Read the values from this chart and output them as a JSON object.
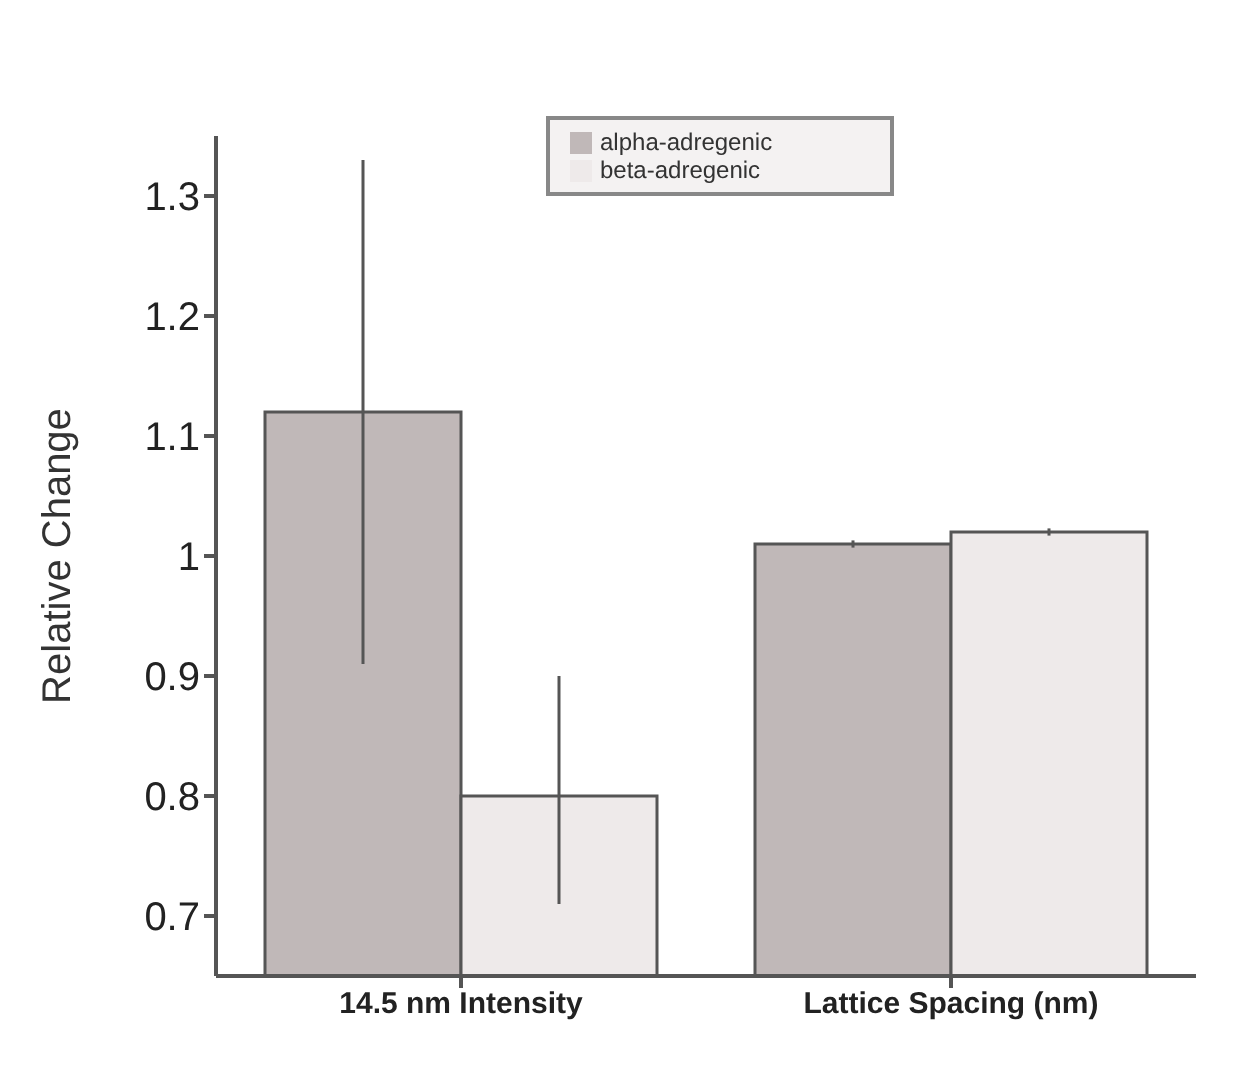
{
  "chart_data": {
    "type": "bar",
    "ylabel": "Relative Change",
    "categories": [
      "14.5 nm Intensity",
      "Lattice Spacing (nm)"
    ],
    "series": [
      {
        "name": "alpha-adregenic",
        "color": "#c0b8b8",
        "values": [
          1.12,
          1.01
        ],
        "errors": [
          [
            0.91,
            1.33
          ],
          0.003
        ]
      },
      {
        "name": "beta-adregenic",
        "color": "#eeeaea",
        "values": [
          0.8,
          1.02
        ],
        "errors": [
          [
            0.71,
            0.9
          ],
          0.003
        ]
      }
    ],
    "ylim": [
      0.65,
      1.35
    ],
    "yticks": [
      0.7,
      0.8,
      0.9,
      1,
      1.1,
      1.2,
      1.3
    ],
    "grid": false,
    "legend": "top"
  }
}
